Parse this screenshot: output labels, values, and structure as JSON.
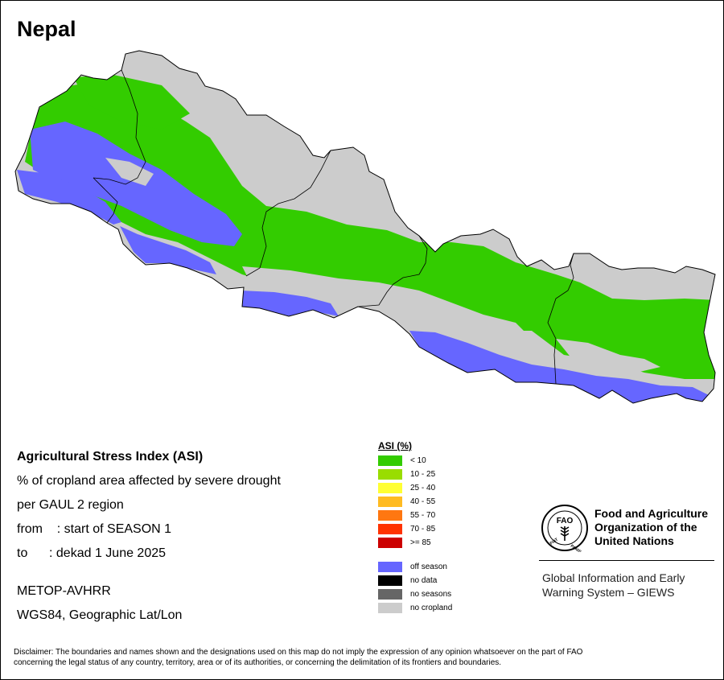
{
  "title": "Nepal",
  "info": {
    "heading": "Agricultural Stress Index (ASI)",
    "line1": "% of cropland area affected by severe drought",
    "line2": "per GAUL 2 region",
    "from": "from    : start of SEASON 1",
    "to": "to      : dekad 1 June 2025",
    "sensor": "METOP-AVHRR",
    "projection": "WGS84, Geographic Lat/Lon"
  },
  "legend": {
    "title": "ASI (%)",
    "classes": [
      {
        "label": "< 10",
        "color": "#33cc00"
      },
      {
        "label": "10 - 25",
        "color": "#99dd00"
      },
      {
        "label": "25 - 40",
        "color": "#ffff33"
      },
      {
        "label": "40 - 55",
        "color": "#ffbb22"
      },
      {
        "label": "55 - 70",
        "color": "#ff7711"
      },
      {
        "label": "70 - 85",
        "color": "#ff3300"
      },
      {
        "label": ">= 85",
        "color": "#cc0000"
      }
    ],
    "other": [
      {
        "label": "off season",
        "color": "#6666ff"
      },
      {
        "label": "no data",
        "color": "#000000"
      },
      {
        "label": "no seasons",
        "color": "#666666"
      },
      {
        "label": "no cropland",
        "color": "#cccccc"
      }
    ]
  },
  "fao": {
    "name_line1": "Food and Agriculture",
    "name_line2": "Organization of the",
    "name_line3": "United Nations",
    "emblem_text": "FAO",
    "emblem_motto_left": "FIAT",
    "emblem_motto_right": "PANIS",
    "giews_line1": "Global Information and Early",
    "giews_line2": "Warning System – GIEWS"
  },
  "disclaimer": {
    "line1": "Disclaimer: The boundaries and names shown and the designations used on this map do not imply the expression of any opinion whatsoever on the part of FAO",
    "line2": "concerning the legal status of any country, territory, area or of its authorities, or concerning the delimitation of its frontiers and boundaries."
  }
}
